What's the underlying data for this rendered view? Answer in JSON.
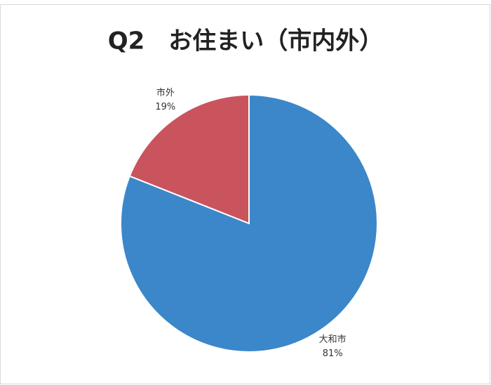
{
  "chart_data": {
    "type": "pie",
    "title": "Q2　お住まい（市内外）",
    "categories": [
      "大和市",
      "市外"
    ],
    "values": [
      81,
      19
    ],
    "value_labels": [
      "81%",
      "19%"
    ],
    "colors": [
      "#3b87c9",
      "#c9545e"
    ]
  }
}
